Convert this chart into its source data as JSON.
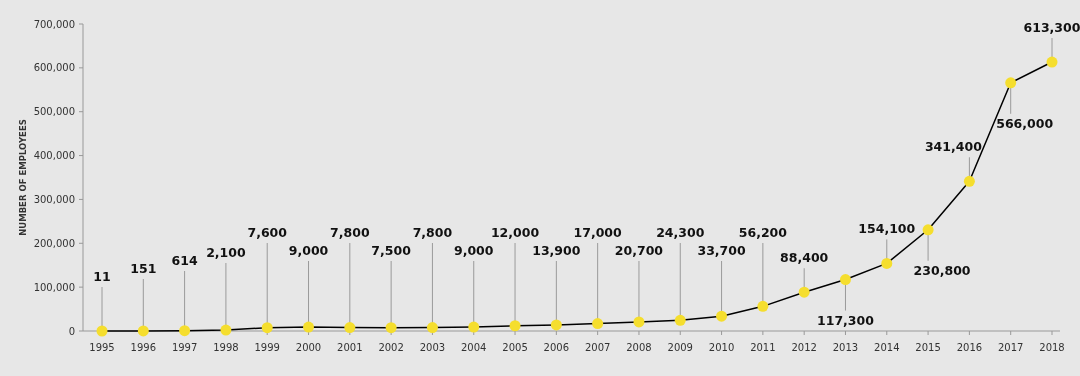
{
  "chart_data": {
    "type": "line",
    "ylabel": "NUMBER OF EMPLOYEES",
    "categories": [
      "1995",
      "1996",
      "1997",
      "1998",
      "1999",
      "2000",
      "2001",
      "2002",
      "2003",
      "2004",
      "2005",
      "2006",
      "2007",
      "2008",
      "2009",
      "2010",
      "2011",
      "2012",
      "2013",
      "2014",
      "2015",
      "2016",
      "2017",
      "2018"
    ],
    "series": [
      {
        "color": "#000000",
        "values": [
          11,
          151,
          614,
          2100,
          7600,
          9000,
          7800,
          7500,
          7800,
          9000,
          12000,
          13900,
          17000,
          20700,
          24300,
          33700,
          56200,
          88400,
          117300,
          154100,
          230800,
          341400,
          566000,
          613300
        ],
        "value_labels": [
          "11",
          "151",
          "614",
          "2,100",
          "7,600",
          "9,000",
          "7,800",
          "7,500",
          "7,800",
          "9,000",
          "12,000",
          "13,900",
          "17,000",
          "20,700",
          "24,300",
          "33,700",
          "56,200",
          "88,400",
          "117,300",
          "154,100",
          "230,800",
          "341,400",
          "566,000",
          "613,300"
        ]
      }
    ],
    "marker": "circle",
    "grid": false,
    "ylim": [
      0,
      700000
    ],
    "yticks": [
      {
        "value": 0,
        "label": "0"
      },
      {
        "value": 100000,
        "label": "100,000"
      },
      {
        "value": 200000,
        "label": "200,000"
      },
      {
        "value": 300000,
        "label": "300,000"
      },
      {
        "value": 400000,
        "label": "400,000"
      },
      {
        "value": 500000,
        "label": "500,000"
      },
      {
        "value": 600000,
        "label": "600,000"
      },
      {
        "value": 700000,
        "label": "700,000"
      }
    ]
  }
}
